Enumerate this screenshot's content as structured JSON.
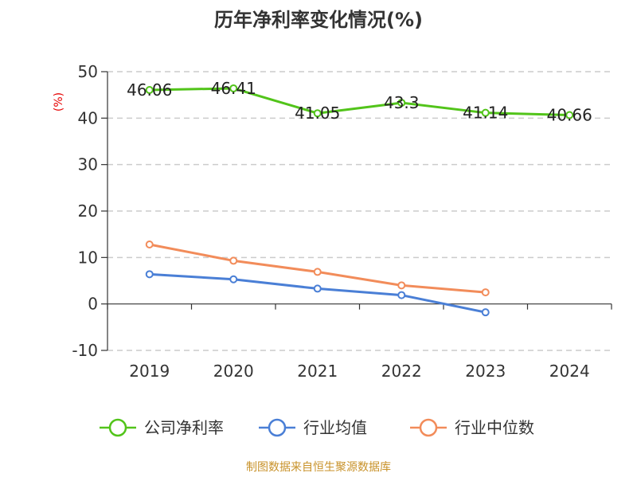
{
  "chart_data": {
    "type": "line",
    "title": "历年净利率变化情况(%)",
    "ylabel": "(%)",
    "xlabel": "",
    "categories": [
      "2019",
      "2020",
      "2021",
      "2022",
      "2023",
      "2024"
    ],
    "ylim": [
      -10,
      50
    ],
    "yticks": [
      -10,
      0,
      10,
      20,
      30,
      40,
      50
    ],
    "grid": true,
    "legend_position": "bottom",
    "series": [
      {
        "name": "公司净利率",
        "color": "#52c41a",
        "values": [
          46.06,
          46.41,
          41.05,
          43.3,
          41.14,
          40.66
        ],
        "labels": [
          "46.06",
          "46.41",
          "41.05",
          "43.3",
          "41.14",
          "40.66"
        ]
      },
      {
        "name": "行业均值",
        "color": "#4a7fd6",
        "values": [
          6.4,
          5.3,
          3.3,
          1.9,
          -1.8,
          null
        ]
      },
      {
        "name": "行业中位数",
        "color": "#f28c5a",
        "values": [
          12.8,
          9.3,
          6.9,
          4.0,
          2.5,
          null
        ]
      }
    ]
  },
  "footer": {
    "source": "制图数据来自恒生聚源数据库"
  }
}
